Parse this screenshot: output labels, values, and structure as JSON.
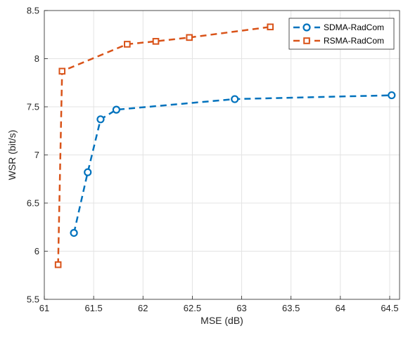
{
  "chart_data": {
    "type": "line",
    "xlabel": "MSE (dB)",
    "ylabel": "WSR (bit/s)",
    "xlim": [
      61,
      64.6
    ],
    "ylim": [
      5.5,
      8.5
    ],
    "xticks": [
      61,
      61.5,
      62,
      62.5,
      63,
      63.5,
      64,
      64.5
    ],
    "yticks": [
      5.5,
      6,
      6.5,
      7,
      7.5,
      8,
      8.5
    ],
    "xtick_labels": [
      "61",
      "61.5",
      "62",
      "62.5",
      "63",
      "63.5",
      "64",
      "64.5"
    ],
    "ytick_labels": [
      "5.5",
      "6",
      "6.5",
      "7",
      "7.5",
      "8",
      "8.5"
    ],
    "grid": true,
    "legend_position": "top-right",
    "series": [
      {
        "name": "SDMA-RadCom",
        "color": "#0072BD",
        "marker": "circle",
        "line_style": "dashed",
        "x": [
          61.3,
          61.44,
          61.57,
          61.73,
          62.93,
          64.52
        ],
        "y": [
          6.19,
          6.82,
          7.37,
          7.47,
          7.58,
          7.62
        ]
      },
      {
        "name": "RSMA-RadCom",
        "color": "#D95319",
        "marker": "square",
        "line_style": "dashed",
        "x": [
          61.14,
          61.18,
          61.84,
          62.13,
          62.47,
          63.29
        ],
        "y": [
          5.86,
          7.87,
          8.15,
          8.18,
          8.22,
          8.33
        ]
      }
    ]
  }
}
